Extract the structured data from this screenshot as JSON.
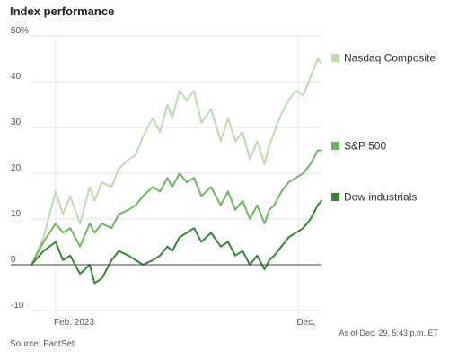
{
  "chart_data": {
    "type": "line",
    "title": "Index performance",
    "y_ticks": [
      {
        "value": 50,
        "label": "50%"
      },
      {
        "value": 40,
        "label": "40"
      },
      {
        "value": 30,
        "label": "30"
      },
      {
        "value": 20,
        "label": "20"
      },
      {
        "value": 10,
        "label": "10"
      },
      {
        "value": 0,
        "label": "0"
      },
      {
        "value": -10,
        "label": "-10"
      }
    ],
    "x_ticks": [
      {
        "value": 1.0,
        "label": "Feb. 2023"
      },
      {
        "value": 11.0,
        "label": "Dec."
      }
    ],
    "ylim": [
      -10,
      50
    ],
    "xlim": [
      0,
      11.95
    ],
    "grid": true,
    "legend_placement": "right",
    "series": [
      {
        "name": "Nasdaq Composite",
        "color": "#bcdcb0",
        "x": [
          0,
          0.5,
          1.0,
          1.3,
          1.6,
          2.0,
          2.4,
          2.6,
          2.9,
          3.3,
          3.6,
          4.0,
          4.3,
          4.6,
          5.0,
          5.3,
          5.6,
          5.8,
          6.1,
          6.4,
          6.7,
          7.0,
          7.4,
          7.8,
          8.1,
          8.4,
          8.7,
          9.0,
          9.3,
          9.6,
          9.8,
          10.0,
          10.3,
          10.6,
          10.9,
          11.2,
          11.5,
          11.8,
          11.95
        ],
        "values": [
          0,
          6,
          16,
          11,
          15,
          9,
          17,
          14,
          18,
          17,
          21,
          23,
          24,
          28,
          32,
          29,
          35,
          32,
          38,
          36,
          38,
          31,
          34,
          27,
          32,
          27,
          29,
          23,
          27,
          22,
          26,
          29,
          33,
          36,
          38,
          37,
          41,
          45,
          44
        ]
      },
      {
        "name": "S&P 500",
        "color": "#6ab85c",
        "x": [
          0,
          0.5,
          1.0,
          1.3,
          1.6,
          2.0,
          2.4,
          2.6,
          2.9,
          3.3,
          3.6,
          4.0,
          4.3,
          4.6,
          5.0,
          5.3,
          5.6,
          5.8,
          6.1,
          6.4,
          6.7,
          7.0,
          7.4,
          7.8,
          8.1,
          8.4,
          8.7,
          9.0,
          9.3,
          9.6,
          9.8,
          10.0,
          10.3,
          10.6,
          10.9,
          11.2,
          11.5,
          11.8,
          11.95
        ],
        "values": [
          0,
          5,
          9,
          7,
          8,
          4,
          9,
          7,
          9,
          8,
          11,
          12,
          13,
          15,
          17,
          16,
          19,
          17,
          20,
          18,
          19,
          15,
          17,
          13,
          16,
          12,
          14,
          10,
          13,
          9,
          12,
          13,
          16,
          18,
          19,
          20,
          22,
          25,
          25
        ]
      },
      {
        "name": "Dow industrials",
        "color": "#2f8a2f",
        "x": [
          0,
          0.5,
          1.0,
          1.3,
          1.6,
          2.0,
          2.4,
          2.6,
          2.9,
          3.3,
          3.6,
          4.0,
          4.3,
          4.6,
          5.0,
          5.3,
          5.6,
          5.8,
          6.1,
          6.4,
          6.7,
          7.0,
          7.4,
          7.8,
          8.1,
          8.4,
          8.7,
          9.0,
          9.3,
          9.6,
          9.8,
          10.0,
          10.3,
          10.6,
          10.9,
          11.2,
          11.5,
          11.8,
          11.95
        ],
        "values": [
          0,
          3,
          5,
          1,
          2,
          -2,
          0,
          -4,
          -3,
          1,
          3,
          2,
          1,
          0,
          1,
          2,
          4,
          3,
          6,
          7,
          8,
          5,
          7,
          4,
          5,
          2,
          3,
          0,
          2,
          -1,
          1,
          2,
          4,
          6,
          7,
          8,
          10,
          13,
          14
        ]
      }
    ],
    "source": "Source: FactSet",
    "as_of": "As of Dec. 29, 5:43 p.m. ET"
  }
}
